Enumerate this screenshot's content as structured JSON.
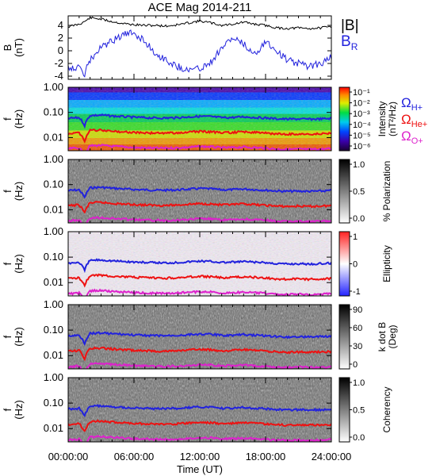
{
  "title": "ACE Mag 2014-211",
  "xlabel": "Time (UT)",
  "x_ticks": [
    "00:00:00",
    "06:00:00",
    "12:00:00",
    "18:00:00",
    "24:00:00"
  ],
  "top_legend": [
    {
      "label": "|B|",
      "color": "#000000"
    },
    {
      "label": "B",
      "sub": "R",
      "color": "#2222dd"
    }
  ],
  "freq_legend": [
    {
      "label": "Ω",
      "sub": "H+",
      "color": "#2222dd"
    },
    {
      "label": "Ω",
      "sub": "He+",
      "color": "#ee1111"
    },
    {
      "label": "Ω",
      "sub": "O+",
      "color": "#dd22cc"
    }
  ],
  "panels": [
    {
      "ylabel": "B",
      "ylabel2": "(nT)",
      "yticks": [
        "4",
        "2",
        "0",
        "-2",
        "-4"
      ]
    },
    {
      "ylabel": "f",
      "ylabel2": "(Hz)",
      "yticks": [
        "1.00",
        "0.10",
        "0.01"
      ],
      "cbar_label": "Intensity",
      "cbar_label2": "(nT²/Hz)",
      "cbar_ticks": [
        "10⁻¹",
        "10⁻²",
        "10⁻³",
        "10⁻⁴",
        "10⁻⁵",
        "10⁻⁶"
      ],
      "cmap": "rainbow"
    },
    {
      "ylabel": "f",
      "ylabel2": "(Hz)",
      "yticks": [
        "1.00",
        "0.10",
        "0.01"
      ],
      "cbar_label": "% Polarization",
      "cbar_label2": "",
      "cbar_ticks": [
        "1.0",
        "0.5",
        "0.0"
      ],
      "cmap": "gray"
    },
    {
      "ylabel": "f",
      "ylabel2": "(Hz)",
      "yticks": [
        "1.00",
        "0.10",
        "0.01"
      ],
      "cbar_label": "Ellipticity",
      "cbar_label2": "",
      "cbar_ticks": [
        "1",
        "0",
        "-1"
      ],
      "cmap": "bwr"
    },
    {
      "ylabel": "f",
      "ylabel2": "(Hz)",
      "yticks": [
        "1.00",
        "0.10",
        "0.01"
      ],
      "cbar_label": "k dot B",
      "cbar_label2": "(Deg)",
      "cbar_ticks": [
        "90",
        "60",
        "30",
        "0"
      ],
      "cmap": "gray"
    },
    {
      "ylabel": "f",
      "ylabel2": "(Hz)",
      "yticks": [
        "1.00",
        "0.10",
        "0.01"
      ],
      "cbar_label": "Coherency",
      "cbar_label2": "",
      "cbar_ticks": [
        "1.0",
        "0.5",
        "0.0"
      ],
      "cmap": "gray"
    }
  ],
  "chart_data": {
    "type": "line",
    "title": "ACE Mag 2014-211",
    "xlabel": "Time (UT)",
    "xlim": [
      "00:00:00",
      "24:00:00"
    ],
    "time_hours": [
      0,
      1,
      1.5,
      2,
      3,
      4,
      5,
      6,
      7,
      8,
      9,
      10,
      11,
      12,
      13,
      14,
      15,
      16,
      17,
      18,
      19,
      20,
      21,
      22,
      23,
      24
    ],
    "magnetic_field": {
      "ylabel": "B (nT)",
      "ylim": [
        -4.5,
        5.5
      ],
      "series": [
        {
          "name": "|B|",
          "values": [
            3.8,
            4.2,
            4.6,
            5.2,
            5.0,
            4.6,
            4.3,
            4.1,
            4.0,
            4.0,
            3.9,
            4.1,
            4.4,
            4.7,
            4.4,
            4.0,
            4.2,
            4.5,
            4.2,
            4.0,
            3.6,
            3.5,
            3.6,
            3.5,
            3.6,
            3.8
          ]
        },
        {
          "name": "B",
          "name_sub": "R",
          "values": [
            -2.5,
            -2.8,
            -3.6,
            -1.5,
            0.5,
            1.5,
            2.5,
            2.8,
            1.5,
            -0.5,
            -1.5,
            -2.5,
            -3.0,
            -2.8,
            -1.8,
            0.5,
            2.0,
            1.0,
            -0.5,
            1.5,
            0.0,
            -1.5,
            -2.0,
            -2.5,
            -2.0,
            -1.0
          ]
        }
      ]
    },
    "gyrofrequencies": {
      "ylabel": "f (Hz)",
      "ylim": [
        0.003,
        1.0
      ],
      "yscale": "log",
      "series": [
        {
          "name": "Ω",
          "name_sub": "H+",
          "values": [
            0.058,
            0.062,
            0.03,
            0.075,
            0.078,
            0.072,
            0.068,
            0.064,
            0.062,
            0.06,
            0.06,
            0.062,
            0.066,
            0.07,
            0.068,
            0.062,
            0.063,
            0.067,
            0.063,
            0.06,
            0.056,
            0.054,
            0.055,
            0.054,
            0.055,
            0.058
          ]
        },
        {
          "name": "Ω",
          "name_sub": "He+",
          "values": [
            0.0145,
            0.0155,
            0.0075,
            0.019,
            0.0195,
            0.018,
            0.017,
            0.016,
            0.0155,
            0.015,
            0.015,
            0.0155,
            0.0165,
            0.0175,
            0.017,
            0.0155,
            0.016,
            0.017,
            0.016,
            0.015,
            0.014,
            0.0135,
            0.014,
            0.0135,
            0.014,
            0.0145
          ]
        },
        {
          "name": "Ω",
          "name_sub": "O+",
          "values": [
            0.0036,
            0.0039,
            0.0019,
            0.0047,
            0.0049,
            0.0045,
            0.0043,
            0.004,
            0.0039,
            0.0038,
            0.0038,
            0.0039,
            0.0041,
            0.0044,
            0.0043,
            0.0039,
            0.004,
            0.0042,
            0.004,
            0.0038,
            0.0035,
            0.0034,
            0.0035,
            0.0034,
            0.0035,
            0.0036
          ]
        }
      ]
    }
  }
}
